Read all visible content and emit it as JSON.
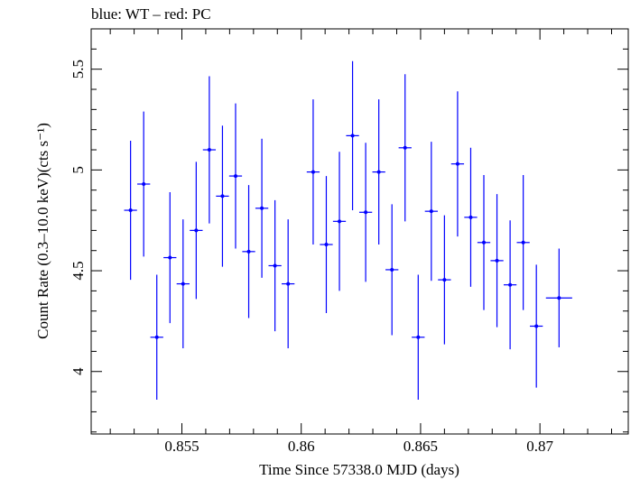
{
  "chart_data": {
    "type": "scatter",
    "title": "blue: WT – red: PC",
    "xlabel": "Time Since 57338.0 MJD (days)",
    "ylabel": "Count Rate (0.3–10.0 keV)(cts s⁻¹)",
    "xlim": [
      0.8512,
      0.8737
    ],
    "ylim": [
      3.69,
      5.7
    ],
    "x_ticks": [
      {
        "value": 0.855,
        "label": "0.855"
      },
      {
        "value": 0.86,
        "label": "0.86"
      },
      {
        "value": 0.865,
        "label": "0.865"
      },
      {
        "value": 0.87,
        "label": "0.87"
      }
    ],
    "y_ticks": [
      {
        "value": 4.0,
        "label": "4"
      },
      {
        "value": 4.5,
        "label": "4.5"
      },
      {
        "value": 5.0,
        "label": "5"
      },
      {
        "value": 5.5,
        "label": "5.5"
      }
    ],
    "grid": false,
    "series": [
      {
        "color": "#0000ff",
        "x_half_width": 0.00027,
        "points": [
          {
            "x": 0.85285,
            "y": 4.8,
            "yerr": 0.345
          },
          {
            "x": 0.8534,
            "y": 4.93,
            "yerr": 0.36
          },
          {
            "x": 0.85395,
            "y": 4.17,
            "yerr": 0.31
          },
          {
            "x": 0.8545,
            "y": 4.565,
            "yerr": 0.325
          },
          {
            "x": 0.85505,
            "y": 4.435,
            "yerr": 0.32
          },
          {
            "x": 0.8556,
            "y": 4.7,
            "yerr": 0.34
          },
          {
            "x": 0.85615,
            "y": 5.1,
            "yerr": 0.365
          },
          {
            "x": 0.8567,
            "y": 4.87,
            "yerr": 0.35
          },
          {
            "x": 0.85725,
            "y": 4.97,
            "yerr": 0.36
          },
          {
            "x": 0.8578,
            "y": 4.595,
            "yerr": 0.33
          },
          {
            "x": 0.85835,
            "y": 4.81,
            "yerr": 0.345
          },
          {
            "x": 0.8589,
            "y": 4.525,
            "yerr": 0.325
          },
          {
            "x": 0.85945,
            "y": 4.435,
            "yerr": 0.32
          },
          {
            "x": 0.8605,
            "y": 4.99,
            "yerr": 0.36
          },
          {
            "x": 0.86105,
            "y": 4.63,
            "yerr": 0.34
          },
          {
            "x": 0.8616,
            "y": 4.745,
            "yerr": 0.345
          },
          {
            "x": 0.86215,
            "y": 5.17,
            "yerr": 0.37
          },
          {
            "x": 0.8627,
            "y": 4.79,
            "yerr": 0.345
          },
          {
            "x": 0.86325,
            "y": 4.99,
            "yerr": 0.36
          },
          {
            "x": 0.8638,
            "y": 4.505,
            "yerr": 0.325
          },
          {
            "x": 0.86435,
            "y": 5.11,
            "yerr": 0.365
          },
          {
            "x": 0.8649,
            "y": 4.17,
            "yerr": 0.31
          },
          {
            "x": 0.86545,
            "y": 4.795,
            "yerr": 0.345
          },
          {
            "x": 0.866,
            "y": 4.455,
            "yerr": 0.32
          },
          {
            "x": 0.86655,
            "y": 5.03,
            "yerr": 0.36
          },
          {
            "x": 0.8671,
            "y": 4.765,
            "yerr": 0.345
          },
          {
            "x": 0.86765,
            "y": 4.64,
            "yerr": 0.335
          },
          {
            "x": 0.8682,
            "y": 4.55,
            "yerr": 0.33
          },
          {
            "x": 0.86875,
            "y": 4.43,
            "yerr": 0.32
          },
          {
            "x": 0.8693,
            "y": 4.64,
            "yerr": 0.335
          },
          {
            "x": 0.86985,
            "y": 4.225,
            "yerr": 0.305
          },
          {
            "x": 0.8708,
            "y": 4.365,
            "yerr": 0.245,
            "x_half_width": 0.00055
          }
        ]
      }
    ]
  }
}
